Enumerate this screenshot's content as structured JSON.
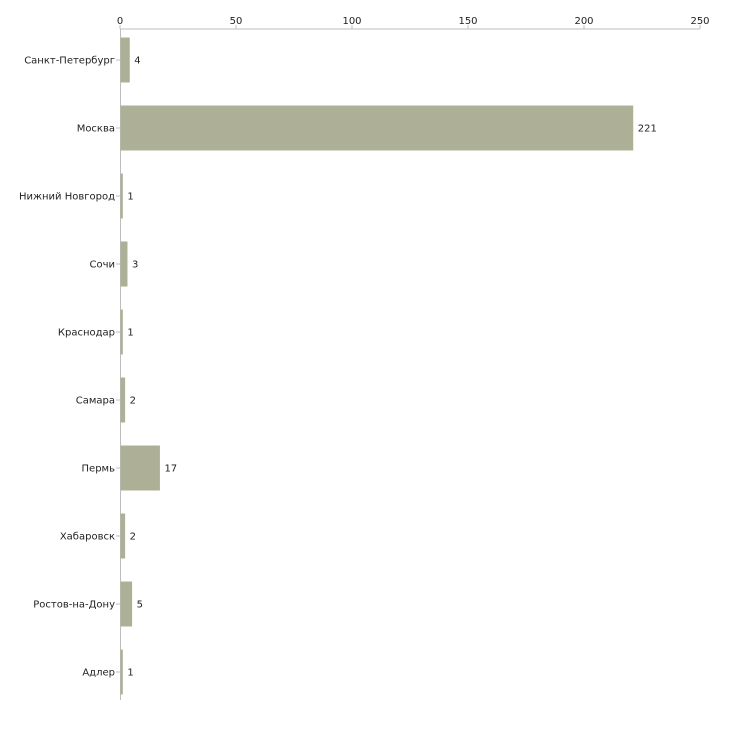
{
  "chart_data": {
    "type": "bar",
    "orientation": "horizontal",
    "title": "",
    "xlabel": "",
    "ylabel": "",
    "xlim": [
      0,
      250
    ],
    "xticks": [
      0,
      50,
      100,
      150,
      200,
      250
    ],
    "grid": false,
    "legend": "none",
    "bar_color": "#adb096",
    "axis_color": "#bdbdbd",
    "categories": [
      "Санкт-Петербург",
      "Москва",
      "Нижний Новгород",
      "Сочи",
      "Краснодар",
      "Самара",
      "Пермь",
      "Хабаровск",
      "Ростов-на-Дону",
      "Адлер"
    ],
    "values": [
      4,
      221,
      1,
      3,
      1,
      2,
      17,
      2,
      5,
      1
    ]
  }
}
